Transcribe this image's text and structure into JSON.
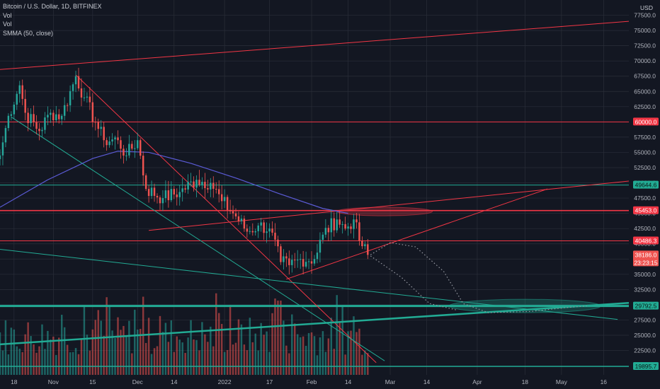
{
  "header": {
    "title": "Bitcoin / U.S. Dollar, 1D, BITFINEX",
    "indicators": [
      "Vol",
      "Vol",
      "SMMA (50, close)"
    ],
    "unit": "USD"
  },
  "colors": {
    "background": "#131722",
    "grid": "#2a2e39",
    "up": "#26a69a",
    "down": "#ef5350",
    "smma": "#5b5bd6",
    "red_line": "#f23645",
    "teal_line": "#22ab94"
  },
  "chart_data": {
    "type": "candlestick",
    "title": "Bitcoin / U.S. Dollar, 1D, BITFINEX",
    "ylim": [
      18500,
      80000
    ],
    "y_ticks": [
      22500,
      25000,
      27500,
      30000,
      32500,
      35000,
      37500,
      40000,
      42500,
      45000,
      47500,
      50000,
      52500,
      55000,
      57500,
      60000,
      62500,
      65000,
      67500,
      70000,
      72500,
      75000,
      77500
    ],
    "y_tick_labels": [
      "22500.0",
      "25000.0",
      "27500.0",
      "30000.0",
      "32500.0",
      "35000.0",
      "37500.0",
      "40000.0",
      "42500.0",
      "45000.0",
      "47500.0",
      "50000.0",
      "52500.0",
      "55000.0",
      "57500.0",
      "60000.0",
      "62500.0",
      "65000.0",
      "67500.0",
      "70000.0",
      "72500.0",
      "75000.0",
      "77500.0"
    ],
    "x_range": [
      "2021-10-13",
      "2022-05-25"
    ],
    "x_ticks": [
      {
        "label": "18",
        "date": "2021-10-18"
      },
      {
        "label": "Nov",
        "date": "2021-11-01"
      },
      {
        "label": "15",
        "date": "2021-11-15"
      },
      {
        "label": "Dec",
        "date": "2021-12-01"
      },
      {
        "label": "14",
        "date": "2021-12-14"
      },
      {
        "label": "2022",
        "date": "2022-01-01"
      },
      {
        "label": "17",
        "date": "2022-01-17"
      },
      {
        "label": "Feb",
        "date": "2022-02-01"
      },
      {
        "label": "14",
        "date": "2022-02-14"
      },
      {
        "label": "Mar",
        "date": "2022-03-01"
      },
      {
        "label": "14",
        "date": "2022-03-14"
      },
      {
        "label": "Apr",
        "date": "2022-04-01"
      },
      {
        "label": "18",
        "date": "2022-04-18"
      },
      {
        "label": "May",
        "date": "2022-05-01"
      },
      {
        "label": "16",
        "date": "2022-05-16"
      }
    ],
    "anchors": [
      {
        "date": "2021-10-13",
        "close": 54500
      },
      {
        "date": "2021-10-16",
        "close": 61000
      },
      {
        "date": "2021-10-20",
        "close": 66000
      },
      {
        "date": "2021-10-22",
        "close": 61500
      },
      {
        "date": "2021-10-27",
        "close": 58500
      },
      {
        "date": "2021-10-31",
        "close": 61500
      },
      {
        "date": "2021-11-04",
        "close": 61000
      },
      {
        "date": "2021-11-09",
        "close": 67500
      },
      {
        "date": "2021-11-12",
        "close": 64000
      },
      {
        "date": "2021-11-16",
        "close": 60000
      },
      {
        "date": "2021-11-19",
        "close": 57000
      },
      {
        "date": "2021-11-24",
        "close": 57000
      },
      {
        "date": "2021-11-27",
        "close": 54500
      },
      {
        "date": "2021-12-01",
        "close": 57000
      },
      {
        "date": "2021-12-04",
        "close": 49000
      },
      {
        "date": "2021-12-10",
        "close": 47500
      },
      {
        "date": "2021-12-16",
        "close": 48500
      },
      {
        "date": "2021-12-22",
        "close": 50500
      },
      {
        "date": "2021-12-27",
        "close": 50000
      },
      {
        "date": "2021-12-31",
        "close": 47000
      },
      {
        "date": "2022-01-05",
        "close": 44500
      },
      {
        "date": "2022-01-09",
        "close": 42000
      },
      {
        "date": "2022-01-13",
        "close": 43000
      },
      {
        "date": "2022-01-17",
        "close": 42500
      },
      {
        "date": "2022-01-21",
        "close": 37000
      },
      {
        "date": "2022-01-24",
        "close": 36500
      },
      {
        "date": "2022-01-28",
        "close": 37500
      },
      {
        "date": "2022-02-02",
        "close": 37500
      },
      {
        "date": "2022-02-05",
        "close": 41500
      },
      {
        "date": "2022-02-10",
        "close": 44000
      },
      {
        "date": "2022-02-13",
        "close": 42500
      },
      {
        "date": "2022-02-16",
        "close": 44000
      },
      {
        "date": "2022-02-18",
        "close": 40500
      },
      {
        "date": "2022-02-21",
        "close": 38186
      }
    ],
    "volume": {
      "ylim": [
        0,
        30
      ],
      "note": "relative scale"
    },
    "smma": {
      "name": "SMMA (50, close)",
      "points": [
        {
          "date": "2021-10-13",
          "value": 46000
        },
        {
          "date": "2021-10-30",
          "value": 50500
        },
        {
          "date": "2021-11-15",
          "value": 54000
        },
        {
          "date": "2021-11-24",
          "value": 55200
        },
        {
          "date": "2021-12-05",
          "value": 55000
        },
        {
          "date": "2021-12-20",
          "value": 53200
        },
        {
          "date": "2022-01-05",
          "value": 50800
        },
        {
          "date": "2022-01-20",
          "value": 48300
        },
        {
          "date": "2022-02-05",
          "value": 45800
        },
        {
          "date": "2022-02-14",
          "value": 45000
        }
      ]
    },
    "horizontal_levels": [
      {
        "value": 60000.0,
        "label": "60000.0",
        "color": "#f23645",
        "width": 1
      },
      {
        "value": 49644.6,
        "label": "49644.6",
        "color": "#22ab94",
        "width": 1
      },
      {
        "value": 45453.0,
        "label": "45453.0",
        "color": "#f23645",
        "width": 1.6
      },
      {
        "value": 40486.3,
        "label": "40486.3",
        "color": "#f23645",
        "width": 1
      },
      {
        "value": 29792.5,
        "label": "29792.5",
        "color": "#22ab94",
        "width": 3
      },
      {
        "value": 19895.7,
        "label": "19895.7",
        "color": "#22ab94",
        "width": 1.5
      }
    ],
    "trend_lines": [
      {
        "from": {
          "date": "2021-10-13",
          "value": 68600
        },
        "to": {
          "date": "2022-05-25",
          "value": 76500
        },
        "color": "#f23645",
        "width": 1
      },
      {
        "from": {
          "date": "2021-11-09",
          "value": 67700
        },
        "to": {
          "date": "2022-02-24",
          "value": 20500
        },
        "color": "#f23645",
        "width": 1
      },
      {
        "from": {
          "date": "2021-10-17",
          "value": 60800
        },
        "to": {
          "date": "2022-02-27",
          "value": 20800
        },
        "color": "#22ab94",
        "width": 1
      },
      {
        "from": {
          "date": "2021-12-05",
          "value": 42200
        },
        "to": {
          "date": "2022-05-25",
          "value": 50300
        },
        "color": "#f23645",
        "width": 1
      },
      {
        "from": {
          "date": "2022-01-23",
          "value": 34200
        },
        "to": {
          "date": "2022-04-26",
          "value": 49000
        },
        "color": "#f23645",
        "width": 1
      },
      {
        "from": {
          "date": "2021-10-13",
          "value": 39100
        },
        "to": {
          "date": "2022-05-21",
          "value": 27600
        },
        "color": "#22ab94",
        "width": 1
      },
      {
        "from": {
          "date": "2021-10-13",
          "value": 23500
        },
        "to": {
          "date": "2022-05-25",
          "value": 30300
        },
        "color": "#22ab94",
        "width": 2.5
      }
    ],
    "projection": {
      "style": "dotted",
      "color": "#9598a1",
      "points": [
        {
          "date": "2022-02-22",
          "value": 38200
        },
        {
          "date": "2022-03-01",
          "value": 40200
        },
        {
          "date": "2022-03-10",
          "value": 39500
        },
        {
          "date": "2022-03-20",
          "value": 35500
        },
        {
          "date": "2022-03-27",
          "value": 30200
        },
        {
          "date": "2022-04-05",
          "value": 28700
        },
        {
          "date": "2022-04-20",
          "value": 28900
        },
        {
          "date": "2022-05-02",
          "value": 29500
        },
        {
          "date": "2022-05-10",
          "value": 29800
        }
      ],
      "secondary": [
        {
          "date": "2022-02-22",
          "value": 38000
        },
        {
          "date": "2022-03-05",
          "value": 34500
        },
        {
          "date": "2022-03-15",
          "value": 30200
        },
        {
          "date": "2022-03-25",
          "value": 29100
        }
      ]
    },
    "zones": [
      {
        "type": "ellipse",
        "center": {
          "date": "2022-04-18",
          "value": 29800
        },
        "rx_days": 27,
        "ry_value": 1100,
        "color": "#22ab94"
      },
      {
        "type": "ellipse",
        "center": {
          "date": "2022-02-27",
          "value": 45300
        },
        "rx_days": 17,
        "ry_value": 700,
        "color": "#f23645"
      }
    ],
    "price_tag": {
      "value": 38186.0,
      "label": "38186.0",
      "countdown": "23:23:15",
      "color": "#ef5350"
    }
  }
}
